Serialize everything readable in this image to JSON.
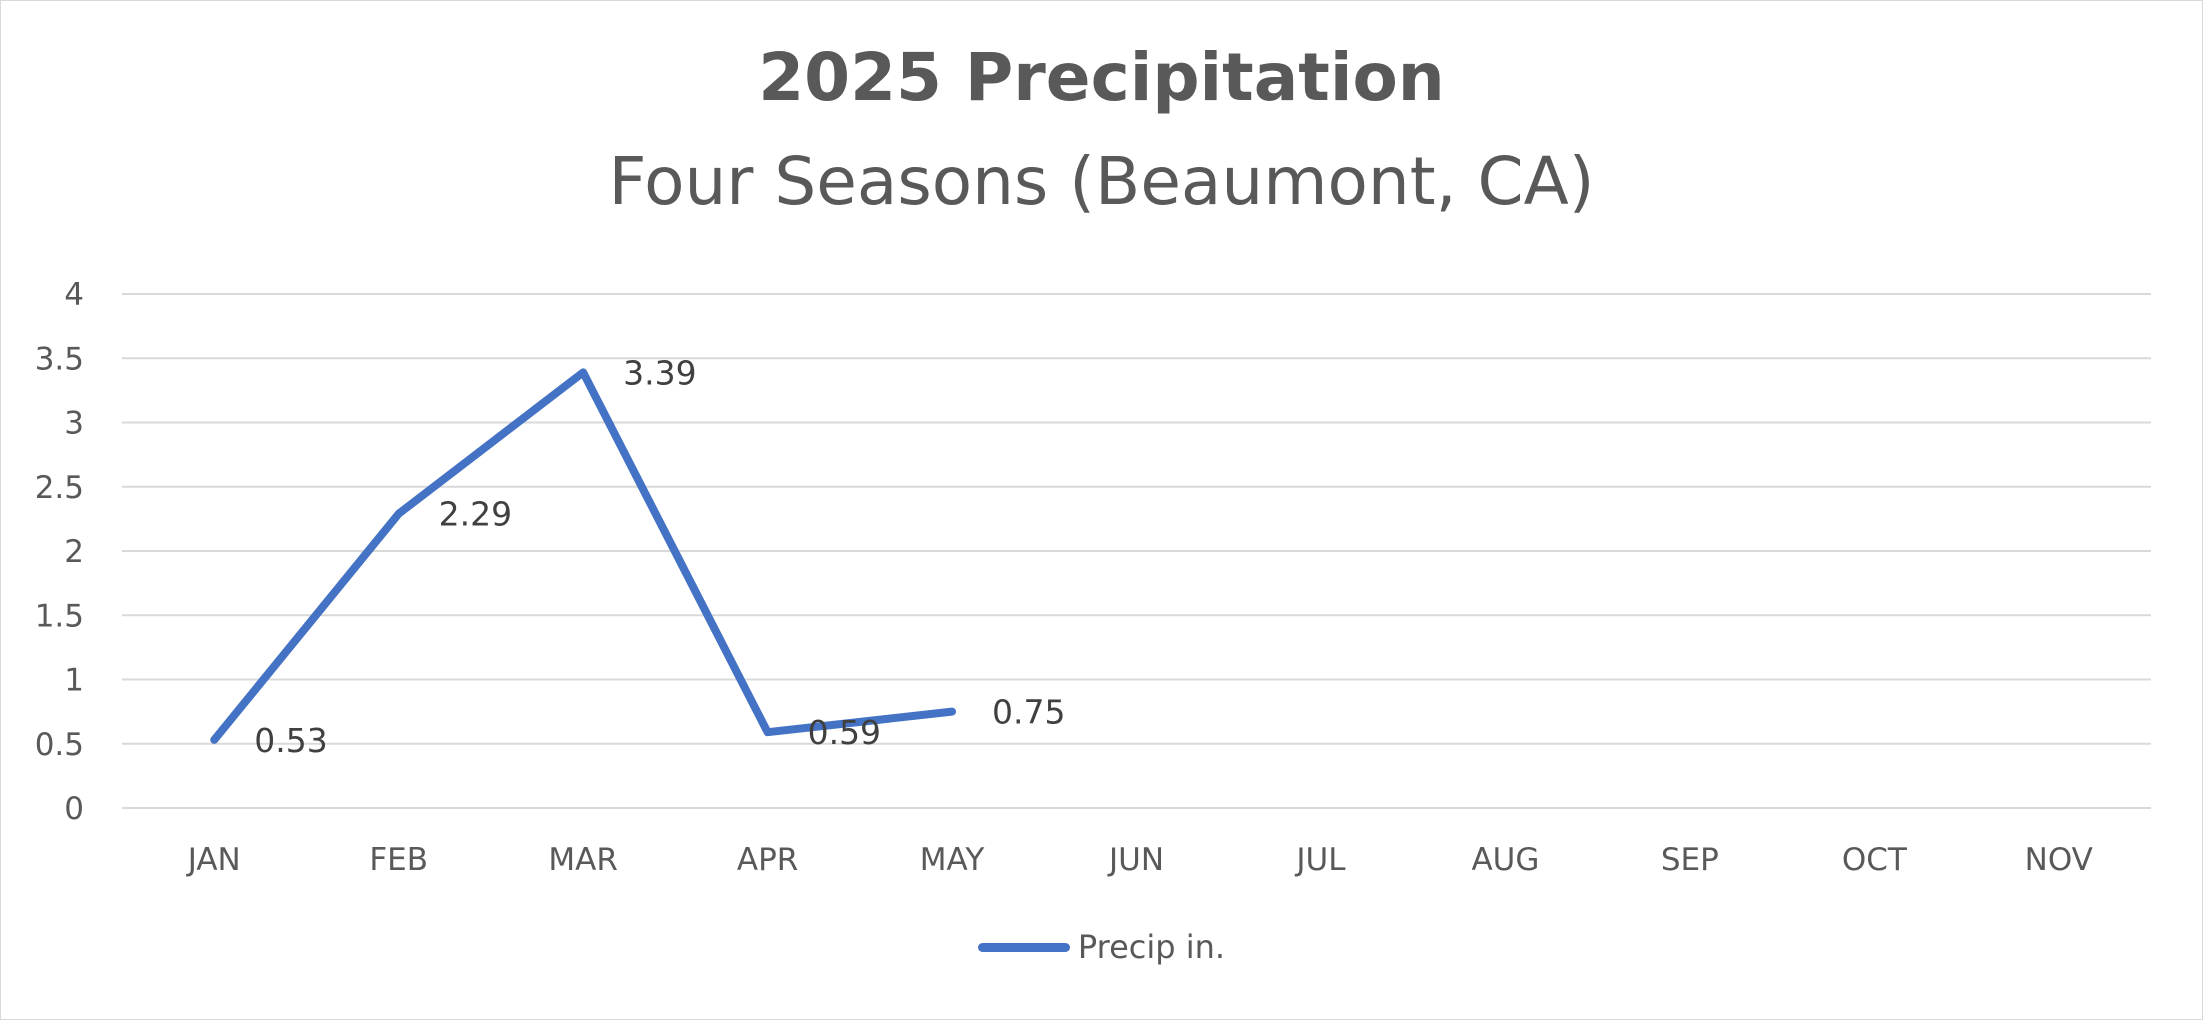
{
  "chart_data": {
    "type": "line",
    "title": "2025 Precipitation",
    "subtitle": "Four Seasons (Beaumont, CA)",
    "categories": [
      "JAN",
      "FEB",
      "MAR",
      "APR",
      "MAY",
      "JUN",
      "JUL",
      "AUG",
      "SEP",
      "OCT",
      "NOV"
    ],
    "series": [
      {
        "name": "Precip in.",
        "color": "#4472c4",
        "values": [
          0.53,
          2.29,
          3.39,
          0.59,
          0.75,
          null,
          null,
          null,
          null,
          null,
          null
        ]
      }
    ],
    "data_labels": [
      "0.53",
      "2.29",
      "3.39",
      "0.59",
      "0.75"
    ],
    "y_ticks": [
      "0",
      "0.5",
      "1",
      "1.5",
      "2",
      "2.5",
      "3",
      "3.5",
      "4"
    ],
    "ylim": [
      0,
      4
    ],
    "grid": true,
    "legend_position": "bottom",
    "colors": {
      "gridline": "#d9d9d9",
      "text": "#595959"
    }
  }
}
